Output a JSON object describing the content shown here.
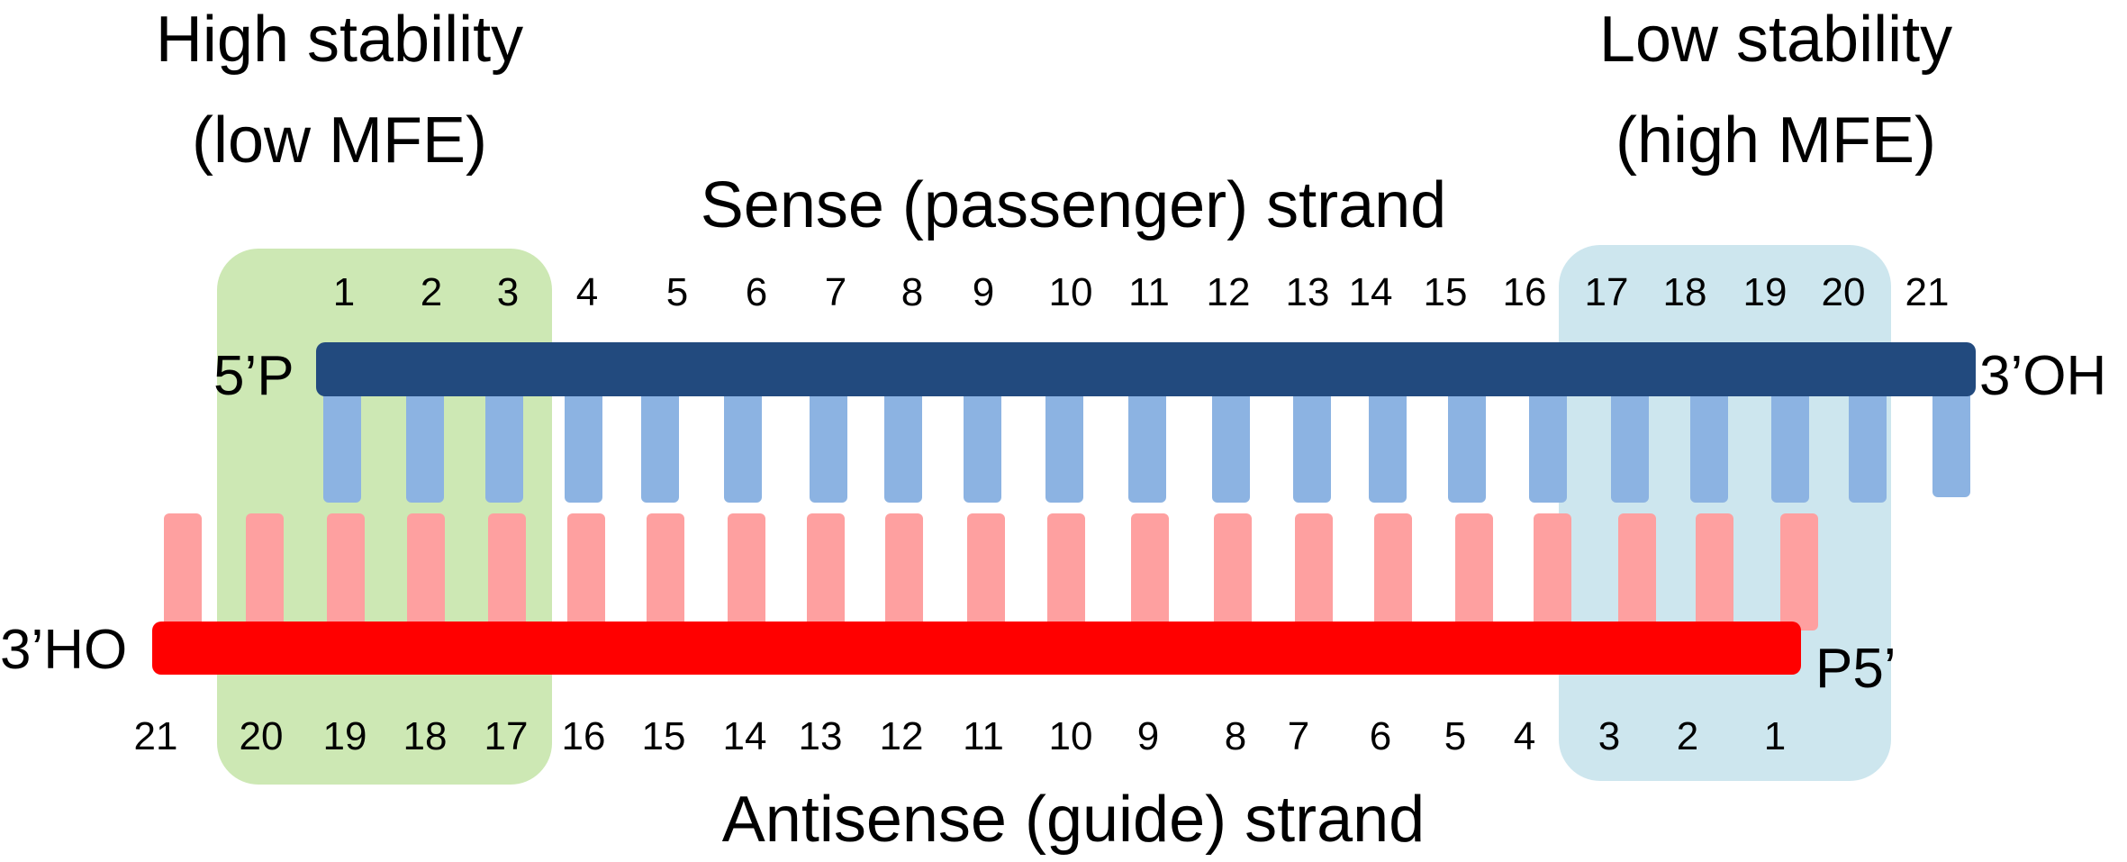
{
  "regions": {
    "high": {
      "line1": "High stability",
      "line2": "(low MFE)",
      "color": "#cde8b4"
    },
    "low": {
      "line1": "Low stability",
      "line2": "(high MFE)",
      "color": "#cde6ee"
    }
  },
  "sense": {
    "label": "Sense (passenger) strand",
    "left_end": "5’P",
    "right_end": "3’OH",
    "color": "#224a7e",
    "base_color": "#8cb3e2",
    "positions": [
      "1",
      "2",
      "3",
      "4",
      "5",
      "6",
      "7",
      "8",
      "9",
      "10",
      "11",
      "12",
      "13",
      "14",
      "15",
      "16",
      "17",
      "18",
      "19",
      "20",
      "21"
    ]
  },
  "antisense": {
    "label": "Antisense (guide) strand",
    "left_end": "3’HO",
    "right_end": "P5’",
    "color": "#ff0000",
    "base_color": "#fea0a0",
    "positions": [
      "21",
      "20",
      "19",
      "18",
      "17",
      "16",
      "15",
      "14",
      "13",
      "12",
      "11",
      "10",
      "9",
      "8",
      "7",
      "6",
      "5",
      "4",
      "3",
      "2",
      "1"
    ]
  }
}
